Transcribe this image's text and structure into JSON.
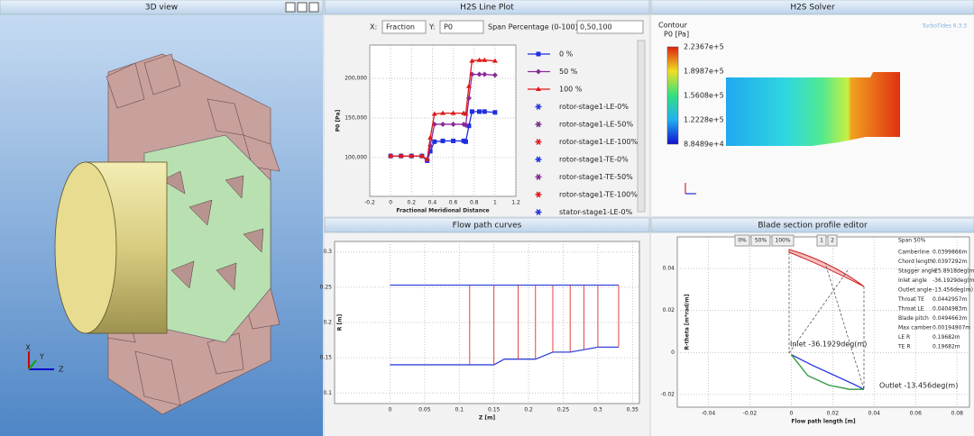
{
  "view3d": {
    "title": "3D view",
    "axes": [
      "X",
      "Y",
      "Z"
    ]
  },
  "line_plot": {
    "title": "H2S Line Plot",
    "x_label": "X:",
    "x_value": "Fraction",
    "y_label": "Y:",
    "y_value": "P0",
    "span_label": "Span Percentage (0-100):",
    "span_value": "0,50,100",
    "chart": {
      "type": "line",
      "x_axis_label": "Fractional Meridional Distance",
      "y_axis_label": "P0 [Pa]",
      "x": [
        0,
        0.1,
        0.2,
        0.3,
        0.35,
        0.38,
        0.42,
        0.5,
        0.6,
        0.7,
        0.72,
        0.75,
        0.78,
        0.85,
        0.9,
        1.0
      ],
      "series": [
        {
          "name": "0 %",
          "color": "#1f2ee0",
          "values": [
            102000,
            102000,
            102000,
            102000,
            96000,
            108000,
            120000,
            121000,
            121000,
            121000,
            120000,
            140000,
            158000,
            158000,
            158000,
            157000
          ]
        },
        {
          "name": "50 %",
          "color": "#8a2a9a",
          "values": [
            102000,
            102000,
            102000,
            102000,
            97000,
            115000,
            142000,
            142000,
            142000,
            142000,
            141000,
            175000,
            205000,
            205000,
            205000,
            204000
          ]
        },
        {
          "name": "100 %",
          "color": "#e01818",
          "values": [
            102000,
            102000,
            102000,
            102000,
            98000,
            125000,
            155000,
            156000,
            156000,
            156000,
            155000,
            190000,
            222000,
            223000,
            223000,
            222000
          ]
        }
      ],
      "xlim": [
        -0.2,
        1.2
      ],
      "xticks": [
        -0.2,
        0,
        0.2,
        0.4,
        0.6,
        0.8,
        1,
        1.2
      ],
      "ylim": [
        51000,
        242000
      ],
      "yticks": [
        {
          "value": 100000,
          "label": "100,000"
        },
        {
          "value": 150000,
          "label": "150,000"
        },
        {
          "value": 200000,
          "label": "200,000"
        }
      ],
      "grid": true
    },
    "legend_markers": [
      {
        "name": "rotor-stage1-LE-0%",
        "color": "#1f2ee0"
      },
      {
        "name": "rotor-stage1-LE-50%",
        "color": "#7a2a8a"
      },
      {
        "name": "rotor-stage1-LE-100%",
        "color": "#e01818"
      },
      {
        "name": "rotor-stage1-TE-0%",
        "color": "#1f2ee0"
      },
      {
        "name": "rotor-stage1-TE-50%",
        "color": "#7a2a8a"
      },
      {
        "name": "rotor-stage1-TE-100%",
        "color": "#e01818"
      },
      {
        "name": "stator-stage1-LE-0%",
        "color": "#1f2ee0"
      }
    ]
  },
  "solver": {
    "title": "H2S Solver",
    "watermark": "TurboTides 6.3.3",
    "legend_title": "Contour",
    "unit": "P0 [Pa]",
    "colorbar_labels": [
      "2.2367e+5",
      "1.8987e+5",
      "1.5608e+5",
      "1.2228e+5",
      "8.8489e+4"
    ]
  },
  "flow_path": {
    "title": "Flow path curves",
    "chart": {
      "type": "line",
      "x_axis_label": "Z [m]",
      "y_axis_label": "R [m]",
      "series": [
        {
          "color": "#3344dd",
          "x": [
            0,
            0.115,
            0.15,
            0.165,
            0.21,
            0.235,
            0.26,
            0.3,
            0.33
          ],
          "values": [
            0.14,
            0.14,
            0.14,
            0.148,
            0.148,
            0.158,
            0.158,
            0.165,
            0.165
          ]
        },
        {
          "color": "#3344dd",
          "x": [
            0,
            0.33
          ],
          "values": [
            0.253,
            0.253
          ]
        }
      ],
      "edges": [
        0.115,
        0.15,
        0.185,
        0.21,
        0.235,
        0.26,
        0.28,
        0.3,
        0.33
      ],
      "edge_color": "#e03030",
      "xlim": [
        -0.08,
        0.36
      ],
      "xticks": [
        0,
        0.05,
        0.1,
        0.15,
        0.2,
        0.25,
        0.3,
        0.35
      ],
      "ylim": [
        0.085,
        0.315
      ],
      "yticks": [
        0.1,
        0.15,
        0.2,
        0.25,
        0.3
      ],
      "grid": true
    }
  },
  "blade": {
    "title": "Blade section profile editor",
    "buttons": [
      "0%",
      "50%",
      "100%",
      "1",
      "2"
    ],
    "span": "Span 50%",
    "properties": [
      [
        "Camberline",
        "0.0399866m"
      ],
      [
        "Chord length",
        "0.0397292m"
      ],
      [
        "Stagger angle",
        "-25.8918deg(m)"
      ],
      [
        "Inlet angle",
        "-36.1929deg(m)"
      ],
      [
        "Outlet angle",
        "-13.456deg(m)"
      ],
      [
        "Throat TE",
        "0.0442957m"
      ],
      [
        "Throat LE",
        "0.0404983m"
      ],
      [
        "Blade pitch",
        "0.0494663m"
      ],
      [
        "Max camber",
        "0.00194907m"
      ],
      [
        "LE R",
        "0.19682m"
      ],
      [
        "TE R",
        "0.19682m"
      ]
    ],
    "inlet_note": "Inlet -36.1929deg(m)",
    "outlet_note": "Outlet -13.456deg(m)",
    "chart": {
      "type": "line",
      "x_axis_label": "Flow path length [m]",
      "y_axis_label": "R-theta [m*rad/m]",
      "series": [
        {
          "color": "#1f2ee0",
          "x": [
            0,
            0.01,
            0.02,
            0.03,
            0.035
          ],
          "values": [
            -0.001,
            -0.006,
            -0.0105,
            -0.015,
            -0.0175
          ]
        },
        {
          "color": "#2a9a3a",
          "x": [
            0,
            0.008,
            0.018,
            0.028,
            0.035
          ],
          "values": [
            -0.001,
            -0.011,
            -0.0155,
            -0.0175,
            -0.0175
          ]
        }
      ],
      "xlim": [
        -0.055,
        0.086
      ],
      "xticks": [
        -0.04,
        -0.02,
        0,
        0.02,
        0.04,
        0.06,
        0.08
      ],
      "ylim": [
        -0.026,
        0.055
      ],
      "yticks": [
        -0.02,
        0,
        0.02,
        0.04
      ],
      "grid": true
    }
  }
}
